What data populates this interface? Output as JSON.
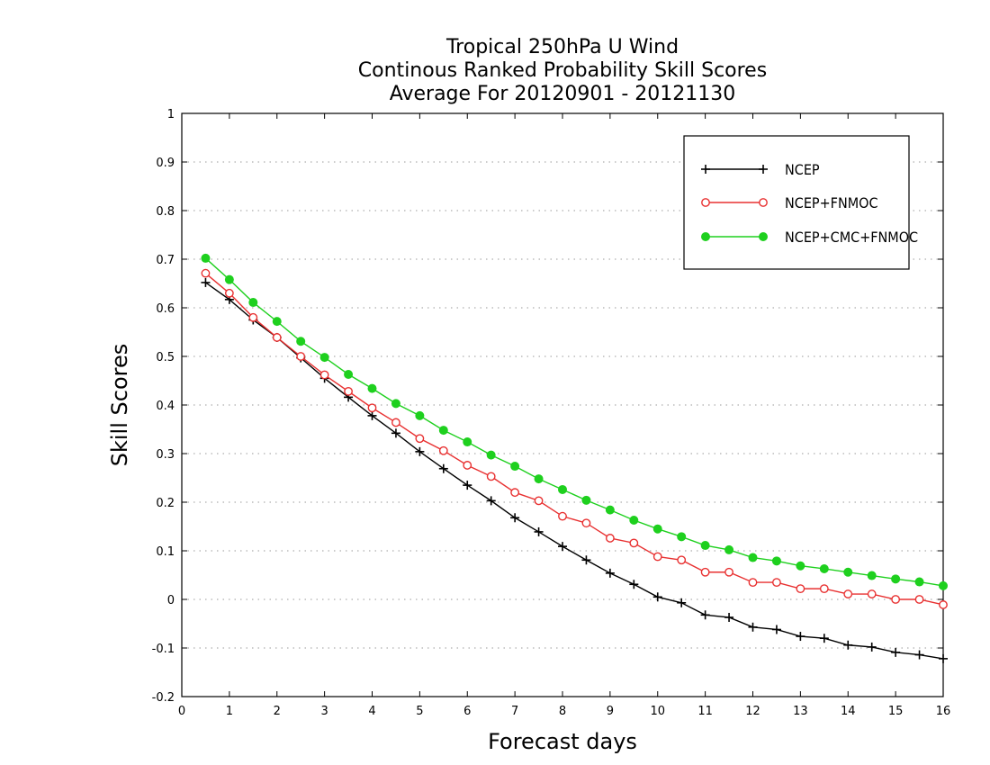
{
  "chart_data": {
    "type": "line",
    "title_lines": [
      "Tropical 250hPa U Wind",
      "Continous Ranked Probability Skill Scores",
      "Average For 20120901 - 20121130"
    ],
    "xlabel": "Forecast days",
    "ylabel": "Skill Scores",
    "xlim": [
      0,
      16
    ],
    "ylim": [
      -0.2,
      1
    ],
    "xticks": [
      0,
      1,
      2,
      3,
      4,
      5,
      6,
      7,
      8,
      9,
      10,
      11,
      12,
      13,
      14,
      15,
      16
    ],
    "xtick_labels": [
      "0",
      "1",
      "2",
      "3",
      "4",
      "5",
      "6",
      "7",
      "8",
      "9",
      "10",
      "11",
      "12",
      "13",
      "14",
      "15",
      "16"
    ],
    "yticks": [
      -0.2,
      -0.1,
      0,
      0.1,
      0.2,
      0.3,
      0.4,
      0.5,
      0.6,
      0.7,
      0.8,
      0.9,
      1
    ],
    "ytick_labels": [
      "-0.2",
      "-0.1",
      "0",
      "0.1",
      "0.2",
      "0.3",
      "0.4",
      "0.5",
      "0.6",
      "0.7",
      "0.8",
      "0.9",
      "1"
    ],
    "grid": "horizontal-dotted",
    "legend_position": "top-right",
    "x": [
      0.5,
      1,
      1.5,
      2,
      2.5,
      3,
      3.5,
      4,
      4.5,
      5,
      5.5,
      6,
      6.5,
      7,
      7.5,
      8,
      8.5,
      9,
      9.5,
      10,
      10.5,
      11,
      11.5,
      12,
      12.5,
      13,
      13.5,
      14,
      14.5,
      15,
      15.5,
      16
    ],
    "series": [
      {
        "name": "NCEP",
        "color": "#000000",
        "marker": "plus",
        "values": [
          0.652,
          0.617,
          0.575,
          0.539,
          0.497,
          0.455,
          0.416,
          0.378,
          0.342,
          0.304,
          0.269,
          0.235,
          0.203,
          0.168,
          0.139,
          0.109,
          0.081,
          0.054,
          0.031,
          0.005,
          -0.007,
          -0.032,
          -0.037,
          -0.057,
          -0.062,
          -0.076,
          -0.08,
          -0.094,
          -0.098,
          -0.109,
          -0.114,
          -0.122
        ]
      },
      {
        "name": "NCEP+FNMOC",
        "color": "#e83030",
        "marker": "open-circle",
        "values": [
          0.671,
          0.63,
          0.58,
          0.539,
          0.5,
          0.462,
          0.428,
          0.394,
          0.364,
          0.331,
          0.306,
          0.276,
          0.253,
          0.22,
          0.203,
          0.171,
          0.157,
          0.126,
          0.116,
          0.088,
          0.081,
          0.056,
          0.056,
          0.035,
          0.035,
          0.022,
          0.022,
          0.011,
          0.011,
          0.0,
          0.0,
          -0.011
        ]
      },
      {
        "name": "NCEP+CMC+FNMOC",
        "color": "#1ed01e",
        "marker": "filled-circle",
        "values": [
          0.702,
          0.658,
          0.611,
          0.572,
          0.531,
          0.498,
          0.463,
          0.434,
          0.403,
          0.378,
          0.348,
          0.324,
          0.297,
          0.274,
          0.248,
          0.226,
          0.204,
          0.184,
          0.163,
          0.145,
          0.129,
          0.111,
          0.102,
          0.086,
          0.079,
          0.069,
          0.063,
          0.056,
          0.049,
          0.042,
          0.036,
          0.028
        ]
      }
    ]
  }
}
